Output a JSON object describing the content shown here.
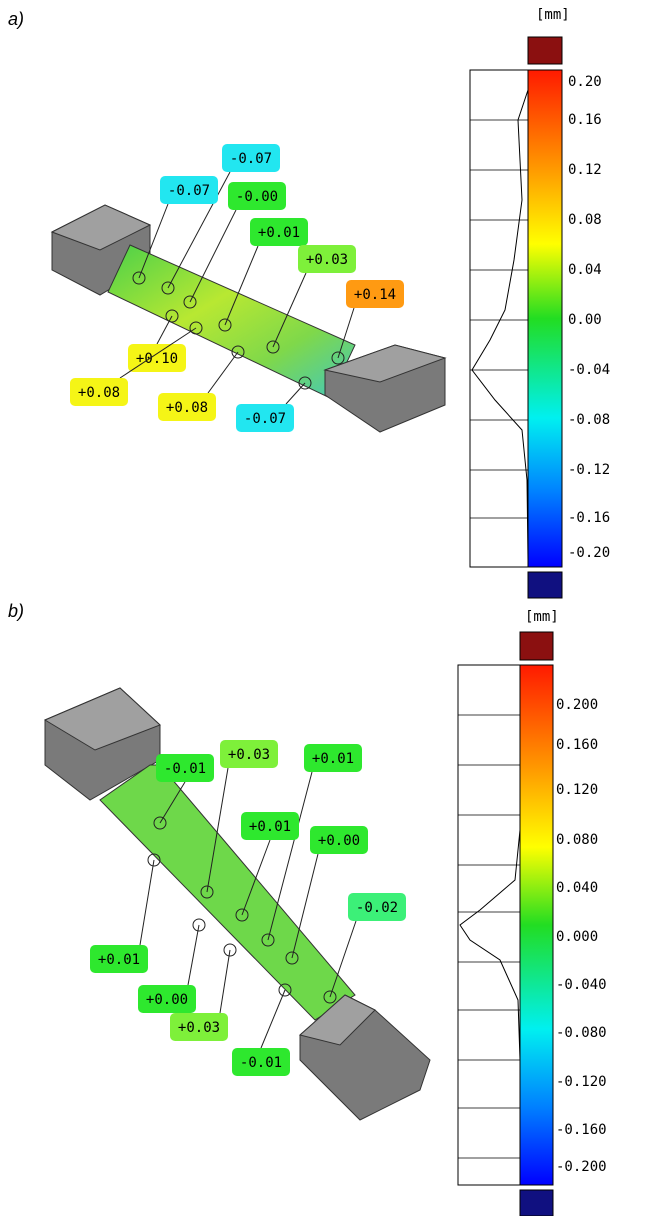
{
  "panels": [
    {
      "label": "a)",
      "unit": "[mm]",
      "scale_ticks": [
        "0.20",
        "0.16",
        "0.12",
        "0.08",
        "0.04",
        "0.00",
        "-0.04",
        "-0.08",
        "-0.12",
        "-0.16",
        "-0.20"
      ],
      "annotations": [
        {
          "text": "-0.07",
          "color": "#22e6f0"
        },
        {
          "text": "-0.07",
          "color": "#22e6f0"
        },
        {
          "text": "-0.00",
          "color": "#2ee82e"
        },
        {
          "text": "+0.01",
          "color": "#2ee82e"
        },
        {
          "text": "+0.03",
          "color": "#7ef03a"
        },
        {
          "text": "+0.14",
          "color": "#ff9a12"
        },
        {
          "text": "+0.10",
          "color": "#f5f516"
        },
        {
          "text": "+0.08",
          "color": "#f5f516"
        },
        {
          "text": "+0.08",
          "color": "#f5f516"
        },
        {
          "text": "-0.07",
          "color": "#22e6f0"
        }
      ]
    },
    {
      "label": "b)",
      "unit": "[mm]",
      "scale_ticks": [
        "0.200",
        "0.160",
        "0.120",
        "0.080",
        "0.040",
        "0.000",
        "-0.040",
        "-0.080",
        "-0.120",
        "-0.160",
        "-0.200"
      ],
      "annotations": [
        {
          "text": "-0.01",
          "color": "#2ee82e"
        },
        {
          "text": "+0.03",
          "color": "#7ef03a"
        },
        {
          "text": "+0.01",
          "color": "#2ee82e"
        },
        {
          "text": "+0.01",
          "color": "#2ee82e"
        },
        {
          "text": "+0.00",
          "color": "#2ee82e"
        },
        {
          "text": "-0.02",
          "color": "#3cf078"
        },
        {
          "text": "+0.01",
          "color": "#2ee82e"
        },
        {
          "text": "+0.00",
          "color": "#2ee82e"
        },
        {
          "text": "+0.03",
          "color": "#7ef03a"
        },
        {
          "text": "-0.01",
          "color": "#2ee82e"
        }
      ]
    }
  ]
}
